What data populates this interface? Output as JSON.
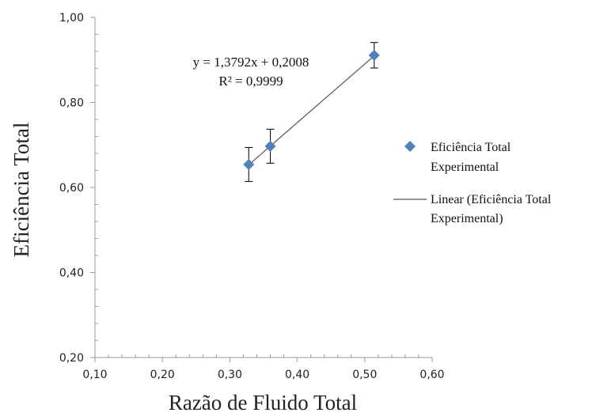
{
  "chart_data": {
    "type": "scatter",
    "xlabel": "Razão de Fluido Total",
    "ylabel": "Eficiência Total",
    "xlim": [
      0.1,
      0.6
    ],
    "ylim": [
      0.2,
      1.0
    ],
    "x_ticks": [
      "0,10",
      "0,20",
      "0,30",
      "0,40",
      "0,50",
      "0,60"
    ],
    "y_ticks": [
      "0,20",
      "0,40",
      "0,60",
      "0,80",
      "1,00"
    ],
    "x_tick_values": [
      0.1,
      0.2,
      0.3,
      0.4,
      0.5,
      0.6
    ],
    "y_tick_values": [
      0.2,
      0.4,
      0.6,
      0.8,
      1.0
    ],
    "grid": false,
    "legend_position": "right",
    "series": [
      {
        "name": "Eficiência Total Experimental",
        "marker": "diamond",
        "color": "#4f81bd",
        "x": [
          0.328,
          0.36,
          0.514
        ],
        "y": [
          0.654,
          0.697,
          0.911
        ],
        "error": [
          0.04,
          0.04,
          0.03
        ]
      }
    ],
    "trendline": {
      "name": "Linear (Eficiência Total Experimental)",
      "slope": 1.3792,
      "intercept": 0.2008,
      "x_range": [
        0.328,
        0.514
      ],
      "color": "#555555"
    },
    "annotations": {
      "equation": "y = 1,3792x + 0,2008",
      "r_squared": "R² = 0,9999"
    },
    "legend": {
      "series_line1": "Eficiência Total",
      "series_line2": "Experimental",
      "trend_line1": "Linear (Eficiência Total",
      "trend_line2": "Experimental)"
    }
  }
}
